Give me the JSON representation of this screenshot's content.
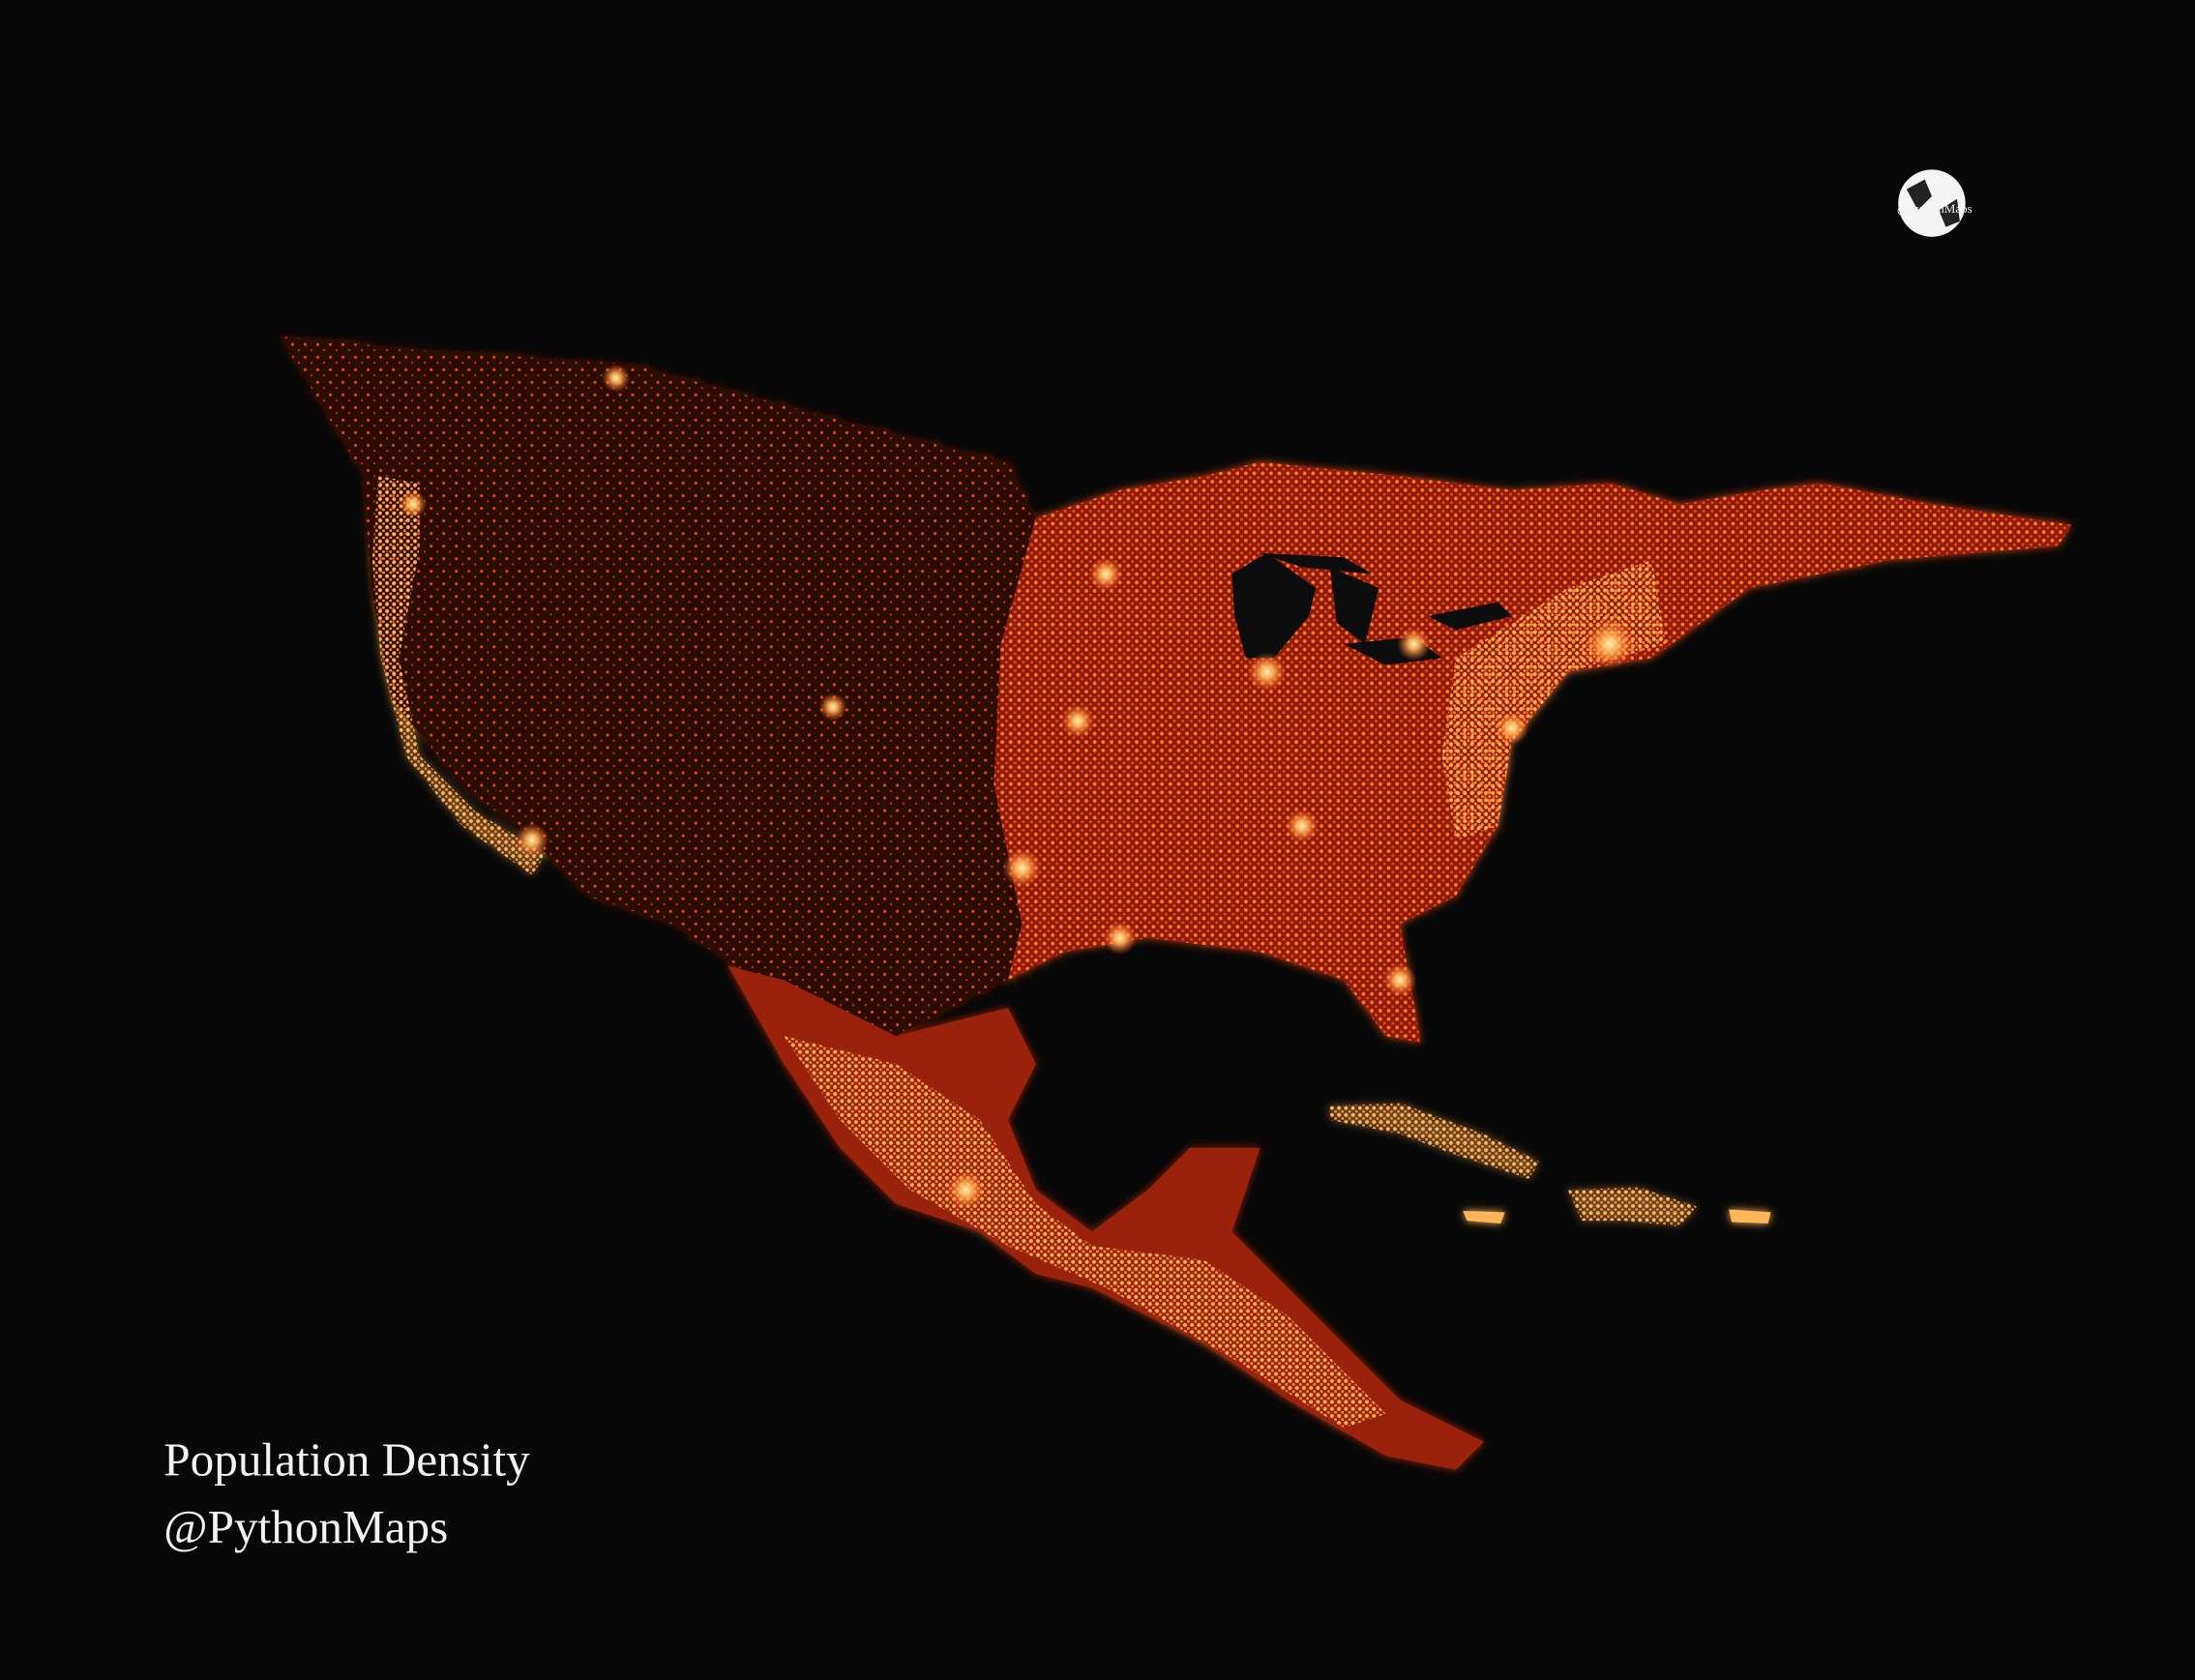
{
  "title": "Population Density",
  "subtitle": "@PythonMaps",
  "logo_text": "@PythonMaps"
}
